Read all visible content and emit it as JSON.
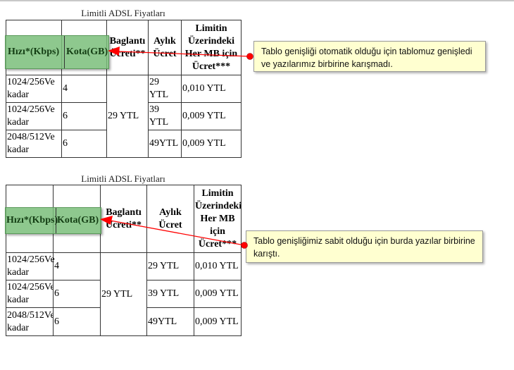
{
  "tables": [
    {
      "caption": "Limitli ADSL Fiyatları",
      "headers": [
        "Hızı*(Kbps)",
        "Kota(GB)",
        "Baglantı Ücreti**",
        "Aylık Ücret",
        "Limitin Üzerindeki Her MB için Ücret***"
      ],
      "connection_fee": "29 YTL",
      "rows": [
        {
          "speed": "1024/256Ve kadar",
          "quota": "4",
          "monthly": "29 YTL",
          "per_mb": "0,010 YTL"
        },
        {
          "speed": "1024/256Ve kadar",
          "quota": "6",
          "monthly": "39 YTL",
          "per_mb": "0,009 YTL"
        },
        {
          "speed": "2048/512Ve kadar",
          "quota": "6",
          "monthly": "49YTL",
          "per_mb": "0,009 YTL"
        }
      ],
      "callout": "Tablo genişliği otomatik olduğu için tablomuz genişledi ve yazılarımız birbirine karışmadı."
    },
    {
      "caption": "Limitli ADSL Fiyatları",
      "headers": [
        "Hızı*(Kbps)",
        "Kota(GB)",
        "Baglantı Ücreti**",
        "Aylık Ücret",
        "Limitin Üzerindeki Her MB için Ücret***"
      ],
      "connection_fee": "29 YTL",
      "rows": [
        {
          "speed": "1024/256Ve kadar",
          "quota": "4",
          "monthly": "29 YTL",
          "per_mb": "0,010 YTL"
        },
        {
          "speed": "1024/256Ve kadar",
          "quota": "6",
          "monthly": "39 YTL",
          "per_mb": "0,009 YTL"
        },
        {
          "speed": "2048/512Ve kadar",
          "quota": "6",
          "monthly": "49YTL",
          "per_mb": "0,009 YTL"
        }
      ],
      "callout": "Tablo genişliğimiz sabit olduğu için burda yazılar birbirine karıştı."
    }
  ],
  "colors": {
    "highlight": "#7abe7a",
    "callout_bg": "#ffffd0",
    "arrow": "#ff0000"
  }
}
